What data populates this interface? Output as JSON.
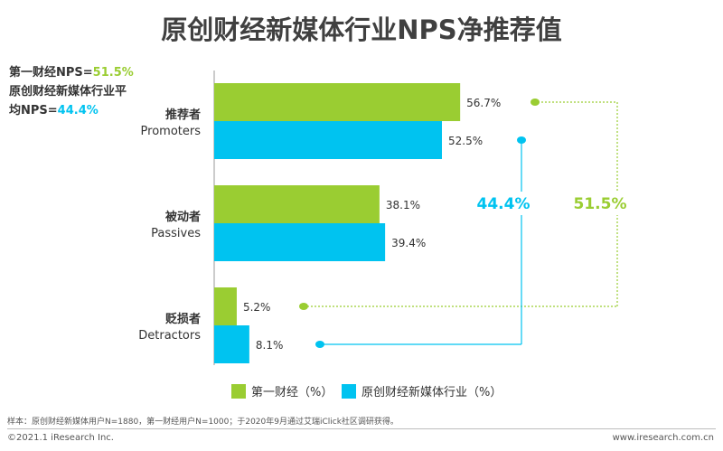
{
  "title": "原创财经新媒体行业NPS净推荐值",
  "nps_box": {
    "line1_label": "第一财经NPS=",
    "line1_value": "51.5%",
    "line2_label": "原创财经新媒体行业平",
    "line3_label": "均NPS=",
    "line3_value": "44.4%"
  },
  "colors": {
    "green": "#9ACD32",
    "blue": "#00C3F0"
  },
  "chart_data": {
    "type": "bar",
    "orientation": "horizontal",
    "categories": [
      {
        "zh": "推荐者",
        "en": "Promoters"
      },
      {
        "zh": "被动者",
        "en": "Passives"
      },
      {
        "zh": "贬损者",
        "en": "Detractors"
      }
    ],
    "series": [
      {
        "name": "第一财经（%）",
        "values": [
          56.7,
          38.1,
          5.2
        ],
        "labels": [
          "56.7%",
          "38.1%",
          "5.2%"
        ]
      },
      {
        "name": "原创财经新媒体行业（%）",
        "values": [
          52.5,
          39.4,
          8.1
        ],
        "labels": [
          "52.5%",
          "39.4%",
          "8.1%"
        ]
      }
    ],
    "annotations": {
      "industry_nps": "44.4%",
      "first_finance_nps": "51.5%"
    },
    "legend_position": "bottom",
    "grid": false
  },
  "footnote": "样本：原创财经新媒体用户N=1880，第一财经用户N=1000；于2020年9月通过艾瑞iClick社区调研获得。",
  "copyright": "©2021.1 iResearch Inc.",
  "website": "www.iresearch.com.cn"
}
